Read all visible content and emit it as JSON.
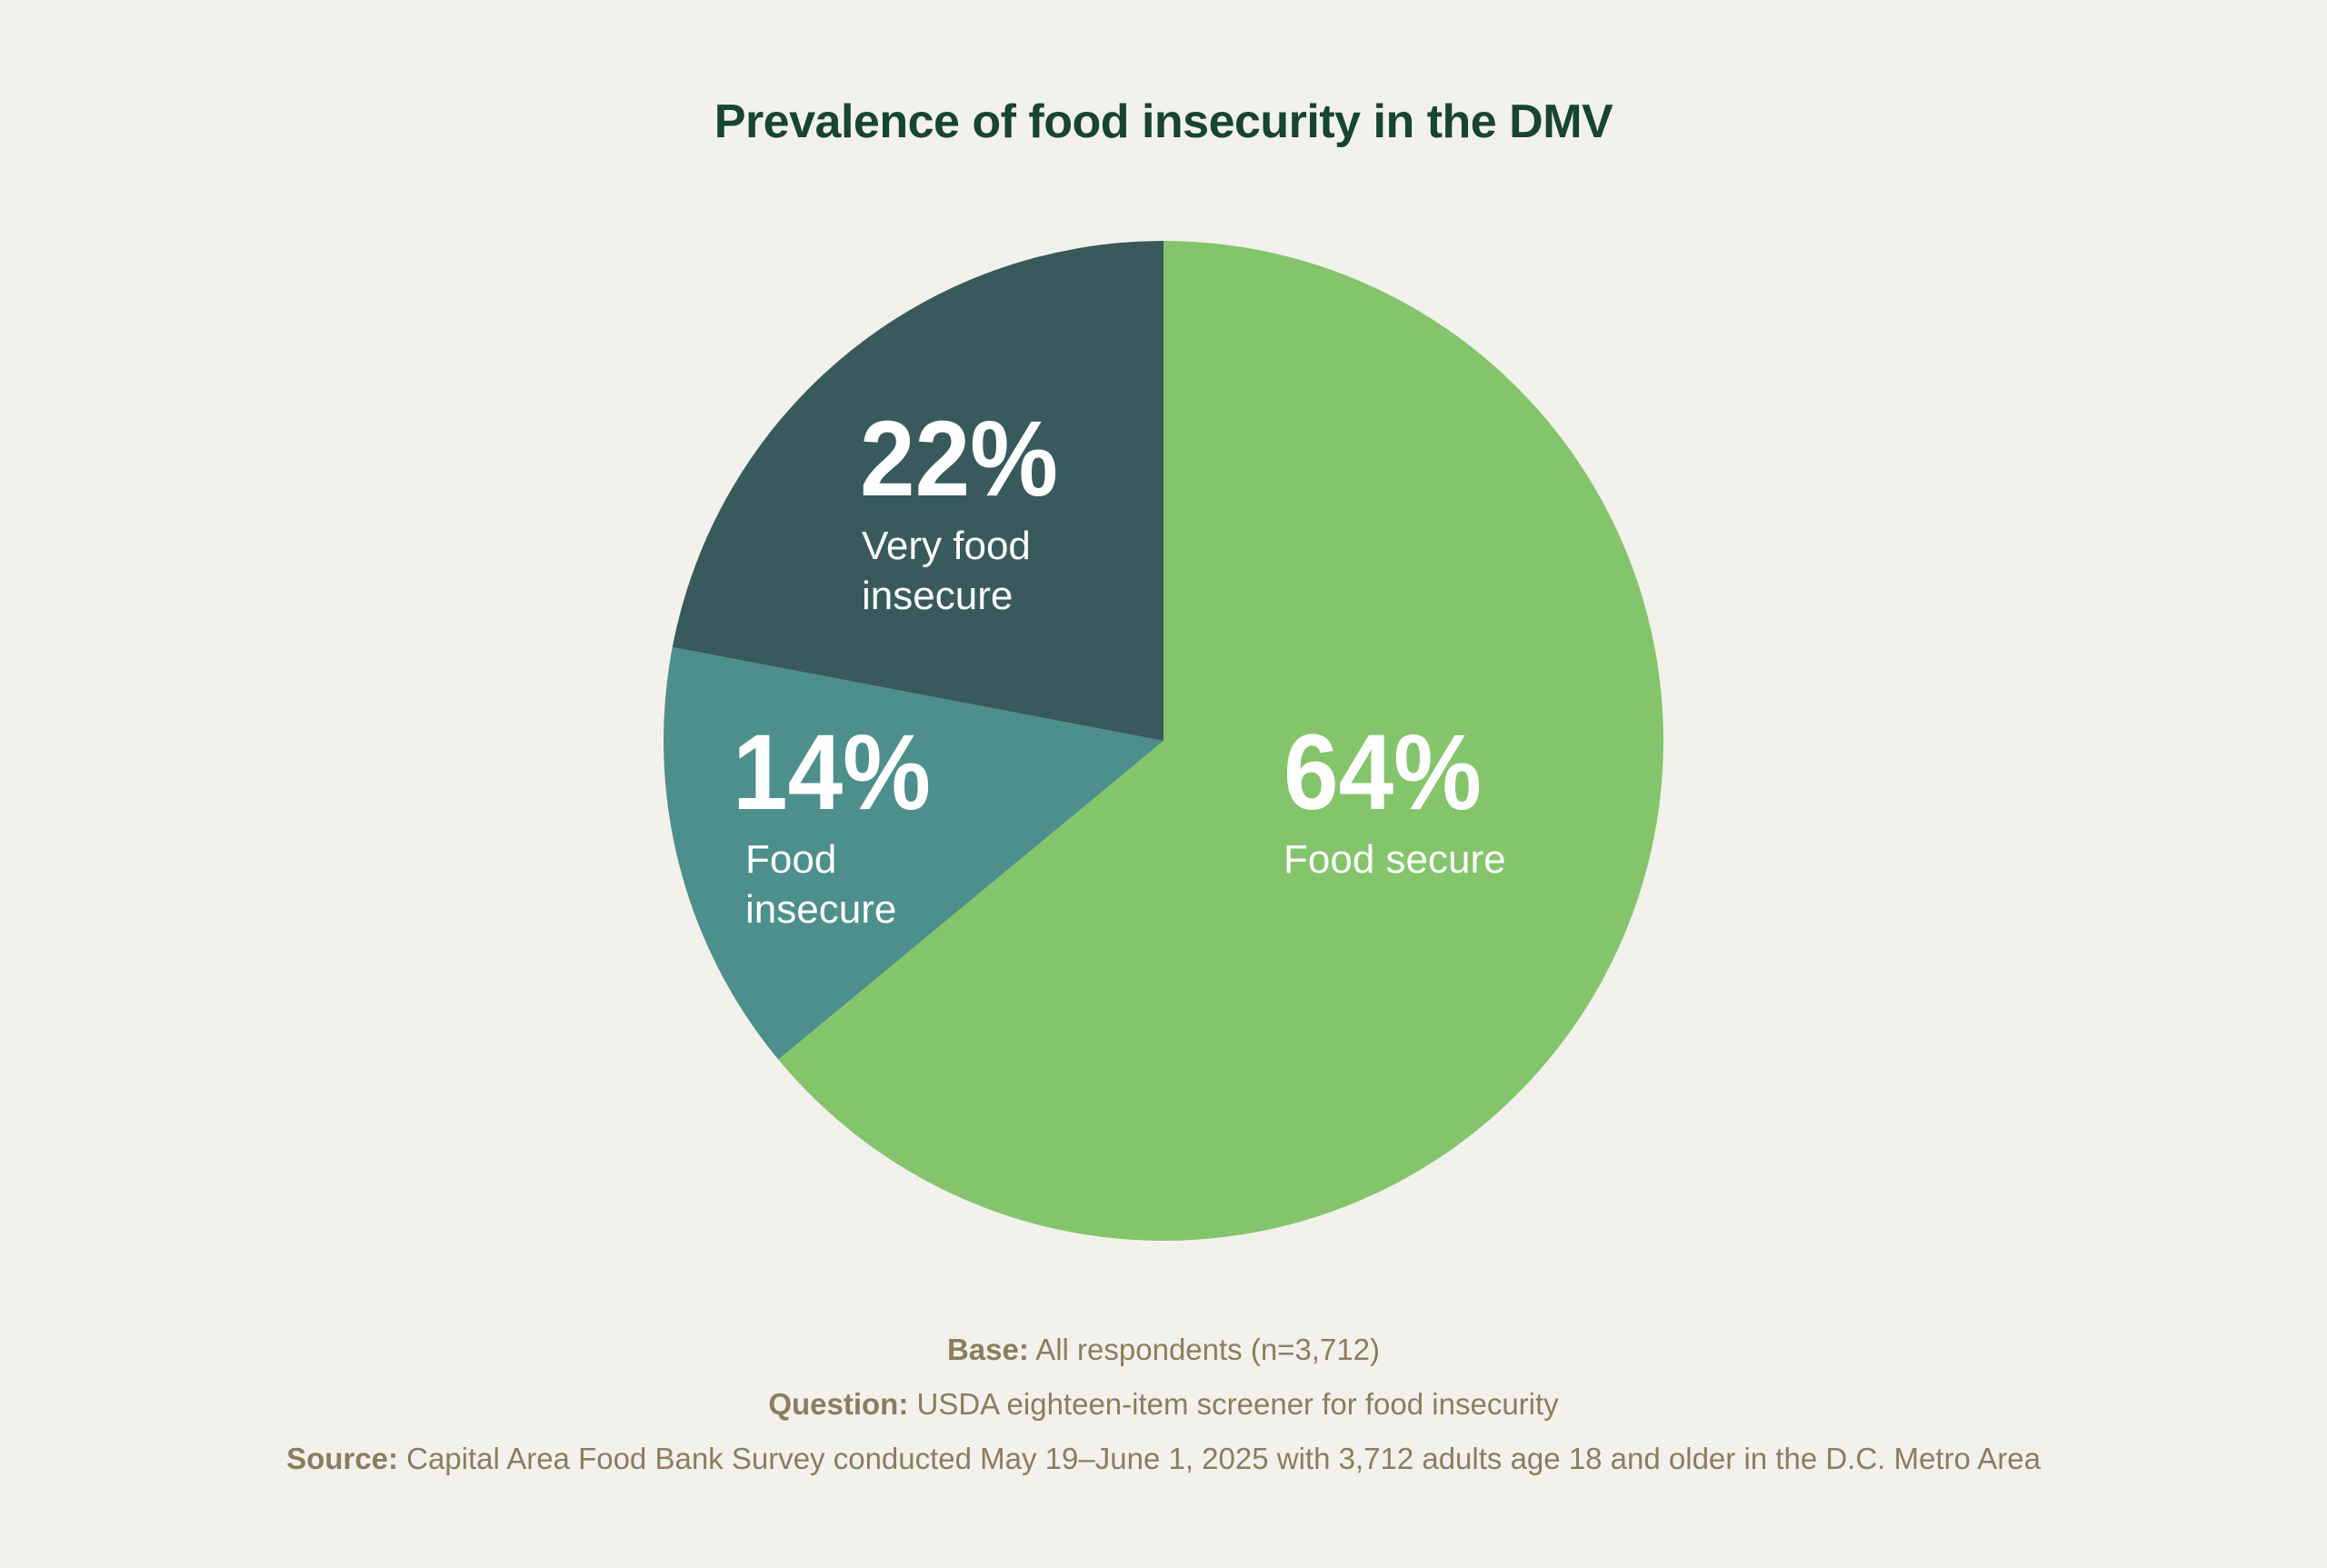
{
  "chart_data": {
    "type": "pie",
    "title": "Prevalence of food insecurity in the DMV",
    "slices": [
      {
        "label": "Food secure",
        "value": 64,
        "value_label": "64%",
        "color": "#84c56c"
      },
      {
        "label": "Food insecure",
        "value": 14,
        "value_label": "14%",
        "color": "#4d8f8c"
      },
      {
        "label": "Very food insecure",
        "value": 22,
        "value_label": "22%",
        "color": "#385a5c"
      }
    ],
    "start": "12 o'clock, clockwise"
  },
  "footnotes": {
    "base_label": "Base:",
    "base_text": "All respondents (n=3,712)",
    "question_label": "Question:",
    "question_text": "USDA eighteen-item screener for food insecurity",
    "source_label": "Source:",
    "source_text": "Capital Area Food Bank Survey conducted May 19–June 1, 2025 with 3,712 adults age 18 and older in the D.C. Metro Area"
  }
}
